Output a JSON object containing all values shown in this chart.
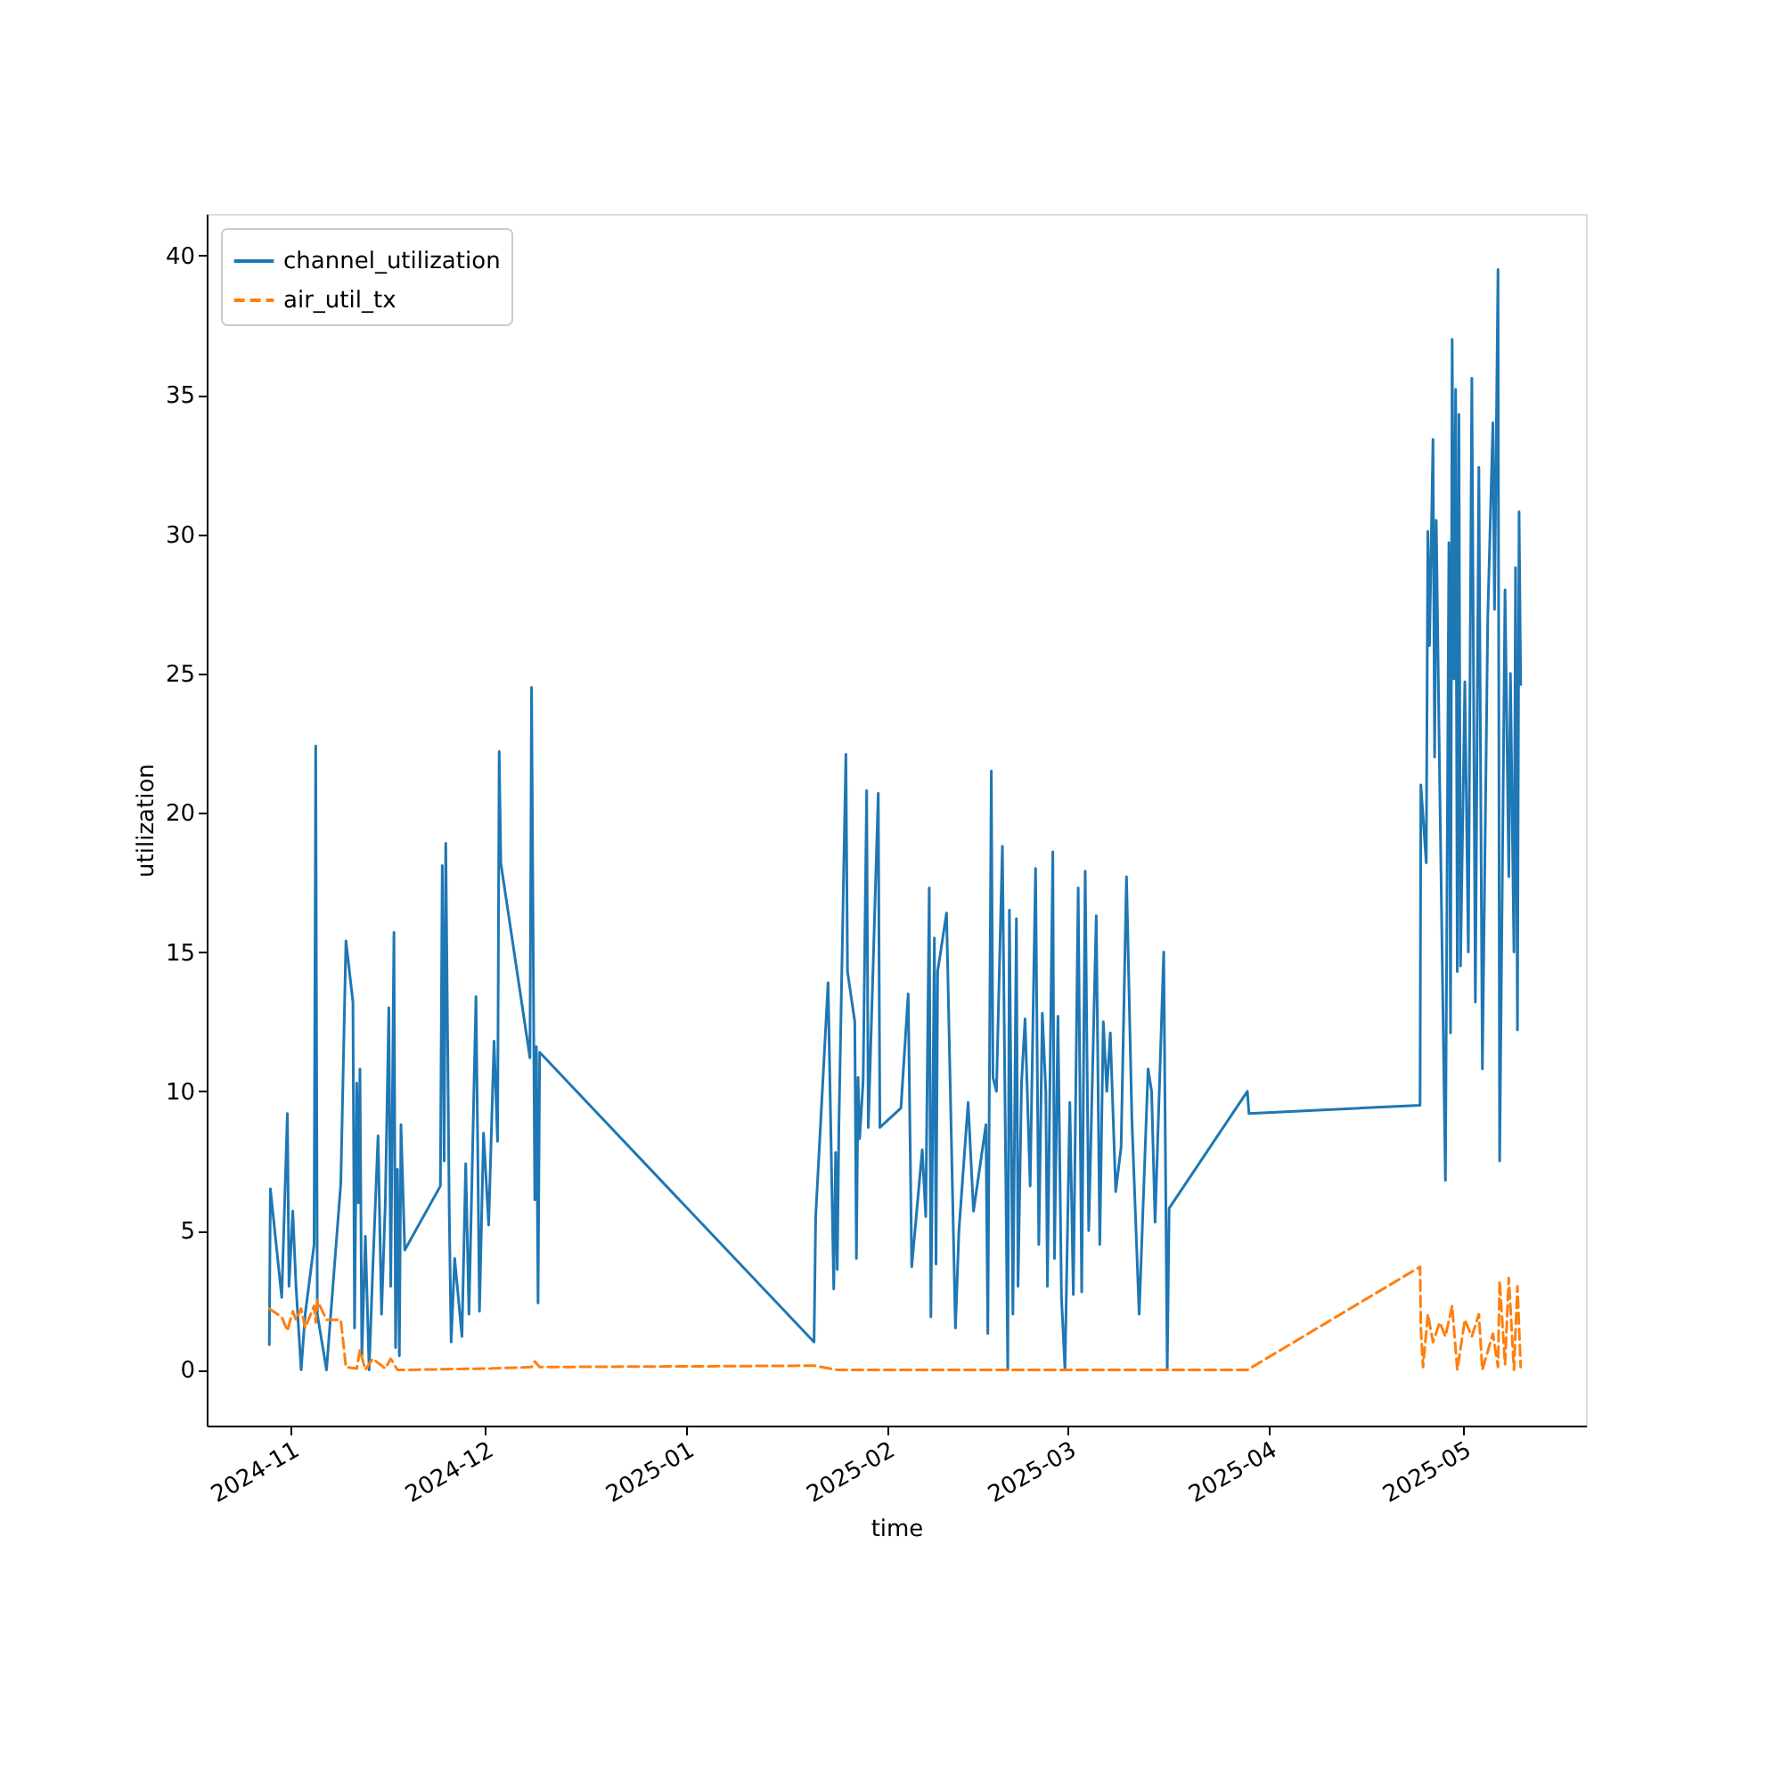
{
  "chart_data": {
    "type": "line",
    "xlabel": "time",
    "ylabel": "utilization",
    "xlim": [
      "2024-10-19",
      "2025-05-20"
    ],
    "ylim": [
      -2,
      41.5
    ],
    "xticks": [
      {
        "value": "2024-11-01",
        "label": "2024-11"
      },
      {
        "value": "2024-12-01",
        "label": "2024-12"
      },
      {
        "value": "2025-01-01",
        "label": "2025-01"
      },
      {
        "value": "2025-02-01",
        "label": "2025-02"
      },
      {
        "value": "2025-03-01",
        "label": "2025-03"
      },
      {
        "value": "2025-04-01",
        "label": "2025-04"
      },
      {
        "value": "2025-05-01",
        "label": "2025-05"
      }
    ],
    "yticks": [
      0,
      5,
      10,
      15,
      20,
      25,
      30,
      35,
      40
    ],
    "grid": false,
    "legend": "top left",
    "series": [
      {
        "name": "channel_utilization",
        "color": "#1f77b4",
        "line_style": "solid",
        "x": [
          "2024-10-28T16:00",
          "2024-10-28T20:00",
          "2024-10-30T14:00",
          "2024-10-31T11:00",
          "2024-10-31T17:00",
          "2024-11-01T07:00",
          "2024-11-01T19:00",
          "2024-11-02T14:00",
          "2024-11-03T05:00",
          "2024-11-04T14:00",
          "2024-11-04T20:00",
          "2024-11-05T02:00",
          "2024-11-06T12:00",
          "2024-11-08T17:00",
          "2024-11-09T12:00",
          "2024-11-10T14:00",
          "2024-11-10T20:00",
          "2024-11-11T04:00",
          "2024-11-11T10:00",
          "2024-11-11T16:00",
          "2024-11-11T23:00",
          "2024-11-12T12:00",
          "2024-11-13T02:00",
          "2024-11-13T15:00",
          "2024-11-14T11:00",
          "2024-11-15T00:00",
          "2024-11-15T14:00",
          "2024-11-16T03:00",
          "2024-11-16T10:00",
          "2024-11-16T22:00",
          "2024-11-17T04:00",
          "2024-11-17T11:00",
          "2024-11-17T18:00",
          "2024-11-18T00:00",
          "2024-11-18T14:00",
          "2024-11-24T02:00",
          "2024-11-24T09:00",
          "2024-11-24T16:00",
          "2024-11-24T22:00",
          "2024-11-25T11:00",
          "2024-11-25T18:00",
          "2024-11-26T07:00",
          "2024-11-27T10:00",
          "2024-11-28T00:00",
          "2024-11-28T12:00",
          "2024-11-29T14:00",
          "2024-11-29T21:00",
          "2024-11-30T03:00",
          "2024-11-30T18:00",
          "2024-12-01T13:00",
          "2024-12-02T09:00",
          "2024-12-02T22:00",
          "2024-12-03T04:00",
          "2024-12-03T10:00",
          "2024-12-07T22:00",
          "2024-12-08T04:00",
          "2024-12-08T16:00",
          "2024-12-08T22:00",
          "2024-12-09T04:00",
          "2024-12-09T10:00",
          "2025-01-20T19:00",
          "2025-01-21T01:00",
          "2025-01-22T23:00",
          "2025-01-23T20:00",
          "2025-01-24T03:00",
          "2025-01-24T09:00",
          "2025-01-24T15:00",
          "2025-01-25T17:00",
          "2025-01-25T23:00",
          "2025-01-27T02:00",
          "2025-01-27T08:00",
          "2025-01-27T14:00",
          "2025-01-27T20:00",
          "2025-01-28T09:00",
          "2025-01-28T22:00",
          "2025-01-29T04:00",
          "2025-01-30T17:00",
          "2025-01-30T23:00",
          "2025-02-03T05:00",
          "2025-02-04T08:00",
          "2025-02-04T21:00",
          "2025-02-06T12:00",
          "2025-02-07T01:00",
          "2025-02-07T14:00",
          "2025-02-07T20:00",
          "2025-02-08T09:00",
          "2025-02-08T15:00",
          "2025-02-08T21:00",
          "2025-02-10T06:00",
          "2025-02-11T15:00",
          "2025-02-12T04:00",
          "2025-02-13T14:00",
          "2025-02-14T10:00",
          "2025-02-16T08:00",
          "2025-02-16T15:00",
          "2025-02-17T04:00",
          "2025-02-17T10:00",
          "2025-02-17T23:00",
          "2025-02-18T21:00",
          "2025-02-19T17:00",
          "2025-02-19T23:00",
          "2025-02-20T12:00",
          "2025-02-21T01:00",
          "2025-02-21T07:00",
          "2025-02-21T20:00",
          "2025-02-22T09:00",
          "2025-02-23T04:00",
          "2025-02-24T00:00",
          "2025-02-24T12:00",
          "2025-02-25T01:00",
          "2025-02-25T14:00",
          "2025-02-25T20:00",
          "2025-02-26T16:00",
          "2025-02-26T22:00",
          "2025-02-27T11:00",
          "2025-02-28T00:00",
          "2025-02-28T13:00",
          "2025-03-01T07:00",
          "2025-03-01T20:00",
          "2025-03-02T14:00",
          "2025-03-03T03:00",
          "2025-03-03T16:00",
          "2025-03-04T05:00",
          "2025-03-05T09:00",
          "2025-03-05T22:00",
          "2025-03-06T11:00",
          "2025-03-07T00:00",
          "2025-03-07T13:00",
          "2025-03-08T09:00",
          "2025-03-09T05:00",
          "2025-03-10T01:00",
          "2025-03-10T21:00",
          "2025-03-12T00:00",
          "2025-03-13T09:00",
          "2025-03-13T22:00",
          "2025-03-14T11:00",
          "2025-03-15T19:00",
          "2025-03-16T08:00",
          "2025-03-16T15:00",
          "2025-03-28T17:00",
          "2025-03-28T23:00",
          "2025-04-24T09:00",
          "2025-04-24T12:00",
          "2025-04-25T08:00",
          "2025-04-25T14:00",
          "2025-04-25T20:00",
          "2025-04-26T09:00",
          "2025-04-26T15:00",
          "2025-04-26T21:00",
          "2025-04-27T10:00",
          "2025-04-28T07:00",
          "2025-04-28T20:00",
          "2025-04-29T02:00",
          "2025-04-29T08:00",
          "2025-04-29T15:00",
          "2025-04-29T21:00",
          "2025-04-30T03:00",
          "2025-04-30T09:00",
          "2025-04-30T15:00",
          "2025-05-01T07:00",
          "2025-05-01T20:00",
          "2025-05-02T09:00",
          "2025-05-02T22:00",
          "2025-05-03T11:00",
          "2025-05-04T00:00",
          "2025-05-04T20:00",
          "2025-05-05T15:00",
          "2025-05-05T21:00",
          "2025-05-06T10:00",
          "2025-05-06T16:00",
          "2025-05-07T12:00",
          "2025-05-08T02:00",
          "2025-05-08T08:00",
          "2025-05-08T21:00",
          "2025-05-09T03:00",
          "2025-05-09T10:00",
          "2025-05-09T16:00",
          "2025-05-09T22:00"
        ],
        "values": [
          0.9,
          6.5,
          2.6,
          9.2,
          3.0,
          5.7,
          3.0,
          0.0,
          2.0,
          4.5,
          22.4,
          2.0,
          0.0,
          6.7,
          15.4,
          13.2,
          1.5,
          10.3,
          6.0,
          10.8,
          0.5,
          4.8,
          0.0,
          3.5,
          8.4,
          2.0,
          6.0,
          13.0,
          3.0,
          15.7,
          0.8,
          7.2,
          0.5,
          8.8,
          4.3,
          6.6,
          18.1,
          7.5,
          18.9,
          5.6,
          1.0,
          4.0,
          1.2,
          7.4,
          2.0,
          13.4,
          7.5,
          2.1,
          8.5,
          5.2,
          11.8,
          8.2,
          22.2,
          18.2,
          11.2,
          24.5,
          6.1,
          11.6,
          2.4,
          11.4,
          1.0,
          5.5,
          13.9,
          2.9,
          7.8,
          3.6,
          8.7,
          22.1,
          14.3,
          12.5,
          4.0,
          10.5,
          8.3,
          10.4,
          20.8,
          8.7,
          20.7,
          8.7,
          9.4,
          13.5,
          3.7,
          7.9,
          5.5,
          17.3,
          1.9,
          15.5,
          3.8,
          14.3,
          16.4,
          1.5,
          5.0,
          9.6,
          5.7,
          8.8,
          1.3,
          21.5,
          10.5,
          10.0,
          18.8,
          0.0,
          16.5,
          2.0,
          16.2,
          3.0,
          10.3,
          12.6,
          6.6,
          18.0,
          4.5,
          12.8,
          10.0,
          3.0,
          18.6,
          4.0,
          12.7,
          2.6,
          0.0,
          9.6,
          2.7,
          17.3,
          2.8,
          17.9,
          5.0,
          16.3,
          4.5,
          12.5,
          10.0,
          12.1,
          6.4,
          8.0,
          17.7,
          9.0,
          2.0,
          10.8,
          10.0,
          5.3,
          15.0,
          0.0,
          5.8,
          10.0,
          9.2,
          9.5,
          21.0,
          18.2,
          30.1,
          26.0,
          33.4,
          22.0,
          30.5,
          21.0,
          6.8,
          29.7,
          12.1,
          37.0,
          24.8,
          35.2,
          14.3,
          34.3,
          14.5,
          24.7,
          15.0,
          35.6,
          13.2,
          32.4,
          10.8,
          27.0,
          34.0,
          27.3,
          39.5,
          7.5,
          28.0,
          17.7,
          25.0,
          15.0,
          28.8,
          12.2,
          30.8,
          24.6
        ]
      },
      {
        "name": "air_util_tx",
        "color": "#ff7f0e",
        "line_style": "dashed",
        "x": [
          "2024-10-28T16:00",
          "2024-10-30T14:00",
          "2024-10-31T11:00",
          "2024-11-01T07:00",
          "2024-11-01T19:00",
          "2024-11-02T14:00",
          "2024-11-03T05:00",
          "2024-11-04T14:00",
          "2024-11-04T20:00",
          "2024-11-05T02:00",
          "2024-11-06T12:00",
          "2024-11-08T17:00",
          "2024-11-09T12:00",
          "2024-11-11T04:00",
          "2024-11-11T16:00",
          "2024-11-12T12:00",
          "2024-11-13T15:00",
          "2024-11-15T14:00",
          "2024-11-16T10:00",
          "2024-11-17T11:00",
          "2024-11-18T14:00",
          "2024-12-01T13:00",
          "2024-12-08T04:00",
          "2024-12-08T16:00",
          "2024-12-09T10:00",
          "2025-01-20T19:00",
          "2025-01-24T09:00",
          "2025-02-05T00:00",
          "2025-03-16T15:00",
          "2025-03-28T17:00",
          "2025-04-24T09:00",
          "2025-04-24T12:00",
          "2025-04-24T20:00",
          "2025-04-25T14:00",
          "2025-04-26T09:00",
          "2025-04-27T10:00",
          "2025-04-28T07:00",
          "2025-04-29T08:00",
          "2025-04-30T03:00",
          "2025-05-01T07:00",
          "2025-05-02T09:00",
          "2025-05-03T11:00",
          "2025-05-04T00:00",
          "2025-05-05T15:00",
          "2025-05-06T10:00",
          "2025-05-06T16:00",
          "2025-05-07T12:00",
          "2025-05-08T02:00",
          "2025-05-08T21:00",
          "2025-05-09T10:00",
          "2025-05-09T22:00"
        ],
        "values": [
          2.2,
          1.9,
          1.4,
          2.1,
          1.8,
          2.2,
          1.5,
          2.3,
          1.7,
          2.5,
          1.8,
          1.8,
          0.1,
          0.05,
          0.7,
          0.0,
          0.4,
          0.05,
          0.4,
          0.0,
          0.0,
          0.05,
          0.1,
          0.3,
          0.1,
          0.15,
          0.0,
          0.0,
          0.0,
          0.0,
          3.7,
          1.5,
          0.1,
          2.0,
          1.0,
          1.7,
          1.2,
          2.3,
          0.0,
          1.8,
          1.2,
          2.0,
          0.0,
          1.3,
          0.1,
          3.2,
          0.2,
          3.3,
          0.0,
          3.0,
          0.1
        ]
      }
    ]
  }
}
